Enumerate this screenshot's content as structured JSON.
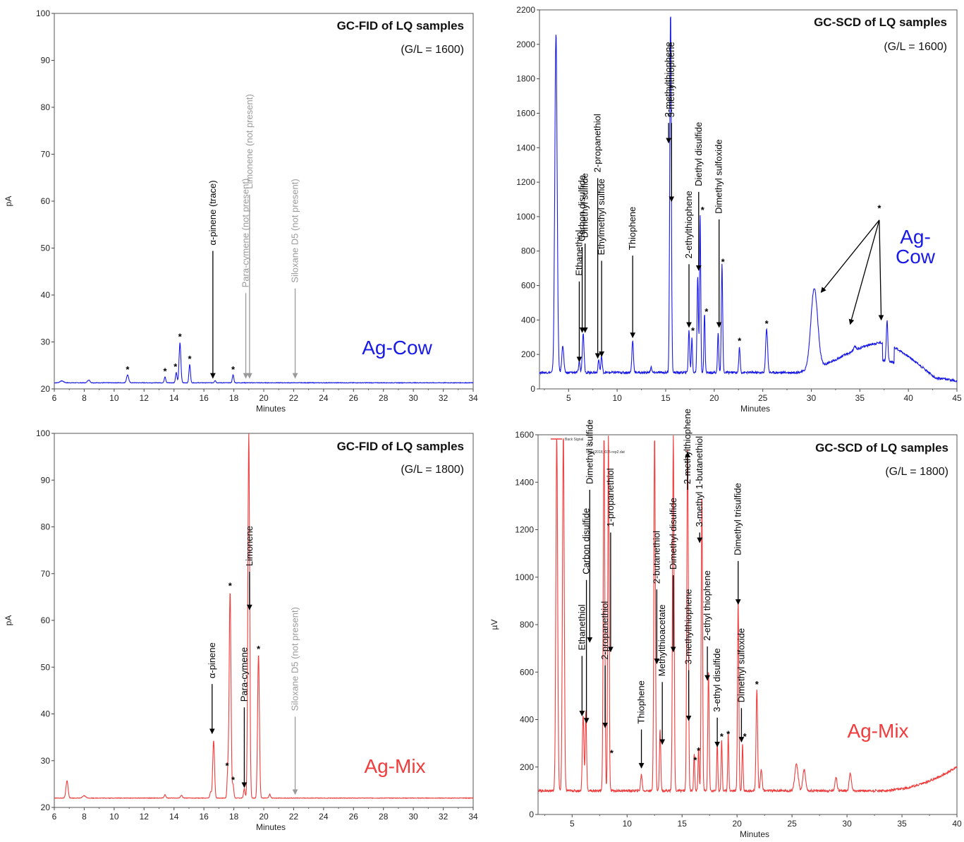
{
  "chart_data": [
    {
      "type": "line",
      "title": "GC-FID of LQ samples",
      "subtitle": "(G/L = 1600)",
      "sample": "Ag-Cow",
      "color": "#1a1ae6",
      "xlabel": "Minutes",
      "ylabel": "pA",
      "xlim": [
        6,
        34
      ],
      "ylim": [
        20,
        100
      ],
      "xticks": [
        6,
        8,
        10,
        12,
        14,
        16,
        18,
        20,
        22,
        24,
        26,
        28,
        30,
        32,
        34
      ],
      "yticks": [
        20,
        30,
        40,
        50,
        60,
        70,
        80,
        90,
        100
      ],
      "baseline": 21.3,
      "peaks": [
        {
          "x": 6.5,
          "y": 21.7,
          "w": 0.12
        },
        {
          "x": 8.3,
          "y": 21.9,
          "w": 0.08
        },
        {
          "x": 10.9,
          "y": 23.0,
          "w": 0.07
        },
        {
          "x": 13.4,
          "y": 22.6,
          "w": 0.05
        },
        {
          "x": 14.15,
          "y": 23.5,
          "w": 0.05
        },
        {
          "x": 14.4,
          "y": 29.8,
          "w": 0.06
        },
        {
          "x": 15.05,
          "y": 25.2,
          "w": 0.05
        },
        {
          "x": 16.75,
          "y": 21.8,
          "w": 0.05
        },
        {
          "x": 17.95,
          "y": 23.0,
          "w": 0.05
        }
      ],
      "annotations": [
        {
          "text": "α-pinene (trace)",
          "x": 16.6,
          "y": 22,
          "top": 50.0,
          "color": "#000000"
        },
        {
          "text": "Para-cymene (not present)",
          "x": 18.8,
          "y": 22,
          "top": 41.0,
          "color": "#9a9a9a"
        },
        {
          "text": "Limonene (not present)",
          "x": 19.05,
          "y": 22,
          "top": 62.0,
          "color": "#9a9a9a"
        },
        {
          "text": "Siloxane D5 (not present)",
          "x": 22.1,
          "y": 22,
          "top": 42.0,
          "color": "#9a9a9a"
        }
      ],
      "stars": [
        [
          10.9,
          24.2
        ],
        [
          13.4,
          23.8
        ],
        [
          14.1,
          24.8
        ],
        [
          14.4,
          31.2
        ],
        [
          15.05,
          26.5
        ],
        [
          17.95,
          24.2
        ]
      ],
      "star": "*"
    },
    {
      "type": "line",
      "title": "GC-SCD of LQ samples",
      "subtitle": "(G/L = 1600)",
      "sample": "Ag-\nCow",
      "color": "#1a1ae6",
      "xlabel": "Minutes",
      "ylabel": "",
      "xlim": [
        2,
        45
      ],
      "ylim": [
        0,
        2200
      ],
      "xticks": [
        5,
        10,
        15,
        20,
        25,
        30,
        35,
        40,
        45
      ],
      "yticks": [
        0,
        200,
        400,
        600,
        800,
        1000,
        1200,
        1400,
        1600,
        1800,
        2000,
        2200
      ],
      "baseline": 95,
      "bump": {
        "from": 28,
        "to": 45
      },
      "peaks": [
        {
          "x": 3.7,
          "y": 2070,
          "w": 0.12
        },
        {
          "x": 4.4,
          "y": 250,
          "w": 0.1
        },
        {
          "x": 6.1,
          "y": 160,
          "w": 0.07
        },
        {
          "x": 6.5,
          "y": 320,
          "w": 0.09
        },
        {
          "x": 8.1,
          "y": 170,
          "w": 0.07
        },
        {
          "x": 8.4,
          "y": 190,
          "w": 0.07
        },
        {
          "x": 11.6,
          "y": 280,
          "w": 0.08
        },
        {
          "x": 13.5,
          "y": 130,
          "w": 0.06
        },
        {
          "x": 15.5,
          "y": 2200,
          "w": 0.08
        },
        {
          "x": 17.4,
          "y": 340,
          "w": 0.07
        },
        {
          "x": 17.7,
          "y": 300,
          "w": 0.06
        },
        {
          "x": 18.3,
          "y": 660,
          "w": 0.07
        },
        {
          "x": 18.55,
          "y": 1010,
          "w": 0.06
        },
        {
          "x": 19.0,
          "y": 440,
          "w": 0.06
        },
        {
          "x": 20.4,
          "y": 330,
          "w": 0.06
        },
        {
          "x": 20.8,
          "y": 720,
          "w": 0.07
        },
        {
          "x": 22.6,
          "y": 240,
          "w": 0.07
        },
        {
          "x": 25.4,
          "y": 350,
          "w": 0.1
        },
        {
          "x": 30.3,
          "y": 560,
          "w": 0.35
        },
        {
          "x": 34.5,
          "y": 115,
          "w": 0.12
        },
        {
          "x": 37.8,
          "y": 330,
          "w": 0.08
        }
      ],
      "annotations": [
        {
          "text": "Ethanethiol",
          "x": 6.1,
          "y": 150,
          "top": 640,
          "color": "#000000"
        },
        {
          "text": "Carbon disulfide",
          "x": 6.4,
          "y": 320,
          "top": 840,
          "color": "#000000"
        },
        {
          "text": "Dimethyl sulfide",
          "x": 6.7,
          "y": 320,
          "top": 860,
          "color": "#000000"
        },
        {
          "text": "2-propanethiol",
          "x": 8.0,
          "y": 170,
          "top": 1240,
          "color": "#000000"
        },
        {
          "text": "Ethylmethyl sulfide",
          "x": 8.4,
          "y": 180,
          "top": 760,
          "color": "#000000"
        },
        {
          "text": "Thiophene",
          "x": 11.6,
          "y": 290,
          "top": 790,
          "color": "#000000"
        },
        {
          "text": "2-methylthiophene",
          "x": 15.3,
          "y": 1420,
          "top": 1560,
          "color": "#000000"
        },
        {
          "text": "3-methylthiophene",
          "x": 15.6,
          "y": 1080,
          "top": 1560,
          "color": "#000000"
        },
        {
          "text": "2-ethylthiophene",
          "x": 17.4,
          "y": 350,
          "top": 740,
          "color": "#000000"
        },
        {
          "text": "Diethyl disulfide",
          "x": 18.4,
          "y": 680,
          "top": 1160,
          "color": "#000000"
        },
        {
          "text": "Dimethyl sulfoxide",
          "x": 20.5,
          "y": 350,
          "top": 1000,
          "color": "#000000"
        }
      ],
      "arrows_from_star": {
        "from": [
          37.0,
          980
        ],
        "to": [
          [
            31.0,
            560
          ],
          [
            34.0,
            375
          ],
          [
            37.2,
            400
          ]
        ]
      },
      "stars": [
        [
          17.8,
          340
        ],
        [
          18.8,
          1040
        ],
        [
          19.2,
          450
        ],
        [
          20.9,
          740
        ],
        [
          22.6,
          280
        ],
        [
          25.4,
          380
        ],
        [
          37.0,
          1050
        ]
      ],
      "star": "*"
    },
    {
      "type": "line",
      "title": "GC-FID of LQ samples",
      "subtitle": "(G/L = 1800)",
      "sample": "Ag-Mix",
      "color": "#f03c3c",
      "xlabel": "Minutes",
      "ylabel": "pA",
      "xlim": [
        6,
        34
      ],
      "ylim": [
        20,
        100
      ],
      "xticks": [
        6,
        8,
        10,
        12,
        14,
        16,
        18,
        20,
        22,
        24,
        26,
        28,
        30,
        32,
        34
      ],
      "yticks": [
        20,
        30,
        40,
        50,
        60,
        70,
        80,
        90,
        100
      ],
      "baseline": 22.0,
      "peaks": [
        {
          "x": 6.85,
          "y": 25.7,
          "w": 0.07
        },
        {
          "x": 8.0,
          "y": 22.5,
          "w": 0.1
        },
        {
          "x": 13.4,
          "y": 22.7,
          "w": 0.06
        },
        {
          "x": 14.5,
          "y": 22.6,
          "w": 0.06
        },
        {
          "x": 16.45,
          "y": 23.3,
          "w": 0.05
        },
        {
          "x": 16.65,
          "y": 34.3,
          "w": 0.06
        },
        {
          "x": 17.6,
          "y": 27.8,
          "w": 0.05
        },
        {
          "x": 17.75,
          "y": 66.2,
          "w": 0.06
        },
        {
          "x": 17.95,
          "y": 24.8,
          "w": 0.05
        },
        {
          "x": 18.7,
          "y": 24.0,
          "w": 0.05
        },
        {
          "x": 19.0,
          "y": 100,
          "w": 0.06
        },
        {
          "x": 19.65,
          "y": 52.8,
          "w": 0.06
        },
        {
          "x": 20.4,
          "y": 22.8,
          "w": 0.05
        }
      ],
      "annotations": [
        {
          "text": "α-pinene",
          "x": 16.55,
          "y": 35.5,
          "top": 47.0,
          "color": "#000000"
        },
        {
          "text": "Para-cymene",
          "x": 18.7,
          "y": 24.0,
          "top": 42.0,
          "color": "#000000"
        },
        {
          "text": "Limonene",
          "x": 19.05,
          "y": 62.0,
          "top": 71.0,
          "color": "#000000"
        },
        {
          "text": "Siloxane D5 (not present)",
          "x": 22.1,
          "y": 22.5,
          "top": 40.0,
          "color": "#9a9a9a"
        }
      ],
      "stars": [
        [
          17.75,
          67.5
        ],
        [
          17.55,
          29.0
        ],
        [
          17.95,
          26.0
        ],
        [
          19.65,
          54.0
        ]
      ],
      "star": "*"
    },
    {
      "type": "line",
      "title": "GC-SCD of LQ samples",
      "subtitle": "(G/L = 1800)",
      "sample": "Ag-Mix",
      "color": "#f03c3c",
      "xlabel": "Minutes",
      "ylabel": "µV",
      "xlim": [
        1.9,
        40
      ],
      "ylim": [
        0,
        1600
      ],
      "xticks": [
        5,
        10,
        15,
        20,
        25,
        30,
        35,
        40
      ],
      "yticks": [
        0,
        200,
        400,
        600,
        800,
        1000,
        1200,
        1400,
        1600
      ],
      "baseline": 100,
      "legend": [
        "Back Signal",
        "SSF",
        "\\data\\2018_035-rep2.dat"
      ],
      "peaks": [
        {
          "x": 3.6,
          "y": 1600,
          "w": 0.08
        },
        {
          "x": 4.2,
          "y": 1600,
          "w": 0.08
        },
        {
          "x": 6.0,
          "y": 420,
          "w": 0.07
        },
        {
          "x": 6.25,
          "y": 440,
          "w": 0.06
        },
        {
          "x": 7.9,
          "y": 1600,
          "w": 0.07
        },
        {
          "x": 8.3,
          "y": 1600,
          "w": 0.06
        },
        {
          "x": 11.3,
          "y": 170,
          "w": 0.07
        },
        {
          "x": 12.5,
          "y": 1600,
          "w": 0.07
        },
        {
          "x": 13.0,
          "y": 360,
          "w": 0.06
        },
        {
          "x": 14.2,
          "y": 1600,
          "w": 0.07
        },
        {
          "x": 15.5,
          "y": 1550,
          "w": 0.07
        },
        {
          "x": 16.1,
          "y": 260,
          "w": 0.05
        },
        {
          "x": 16.5,
          "y": 280,
          "w": 0.05
        },
        {
          "x": 16.8,
          "y": 1360,
          "w": 0.06
        },
        {
          "x": 17.4,
          "y": 610,
          "w": 0.06
        },
        {
          "x": 18.2,
          "y": 300,
          "w": 0.05
        },
        {
          "x": 18.6,
          "y": 320,
          "w": 0.05
        },
        {
          "x": 19.2,
          "y": 340,
          "w": 0.05
        },
        {
          "x": 20.1,
          "y": 900,
          "w": 0.06
        },
        {
          "x": 20.5,
          "y": 300,
          "w": 0.05
        },
        {
          "x": 21.8,
          "y": 530,
          "w": 0.07
        },
        {
          "x": 22.2,
          "y": 190,
          "w": 0.08
        },
        {
          "x": 25.4,
          "y": 210,
          "w": 0.15
        },
        {
          "x": 26.1,
          "y": 190,
          "w": 0.12
        },
        {
          "x": 29.0,
          "y": 155,
          "w": 0.1
        },
        {
          "x": 30.3,
          "y": 175,
          "w": 0.1
        }
      ],
      "rise": {
        "from": 33,
        "to": 40,
        "end": 200
      },
      "annotations": [
        {
          "text": "Ethanethiol",
          "x": 5.9,
          "y": 410,
          "top": 680,
          "color": "#000000"
        },
        {
          "text": "Carbon disulfide",
          "x": 6.3,
          "y": 380,
          "top": 1000,
          "color": "#000000"
        },
        {
          "text": "Dimethyl sulfide",
          "x": 6.6,
          "y": 720,
          "top": 1380,
          "color": "#000000"
        },
        {
          "text": "2-propanethiol",
          "x": 8.0,
          "y": 360,
          "top": 640,
          "color": "#000000"
        },
        {
          "text": "1-propanethiol",
          "x": 8.5,
          "y": 680,
          "top": 1200,
          "color": "#000000"
        },
        {
          "text": "Thiophene",
          "x": 11.3,
          "y": 190,
          "top": 370,
          "color": "#000000"
        },
        {
          "text": "2-butanethiol",
          "x": 12.7,
          "y": 630,
          "top": 960,
          "color": "#000000"
        },
        {
          "text": "Methylthioacetate",
          "x": 13.2,
          "y": 290,
          "top": 570,
          "color": "#000000"
        },
        {
          "text": "Dimethyl disulfide",
          "x": 14.2,
          "y": 680,
          "top": 1020,
          "color": "#000000"
        },
        {
          "text": "2-methylthiophene",
          "x": 15.5,
          "y": 1520,
          "top": 1380,
          "color": "#000000"
        },
        {
          "text": "3-methylthiophene",
          "x": 15.6,
          "y": 390,
          "top": 620,
          "color": "#000000"
        },
        {
          "text": "3-methyl 1-butanethiol",
          "x": 16.6,
          "y": 1140,
          "top": 1200,
          "color": "#000000"
        },
        {
          "text": "2-ethyl thiophene",
          "x": 17.3,
          "y": 560,
          "top": 720,
          "color": "#000000"
        },
        {
          "text": "3-ethyl disulfide",
          "x": 18.2,
          "y": 280,
          "top": 420,
          "color": "#000000"
        },
        {
          "text": "Dimethyl trisulfide",
          "x": 20.1,
          "y": 880,
          "top": 1080,
          "color": "#000000"
        },
        {
          "text": "Dimethyl sulfoxide",
          "x": 20.4,
          "y": 300,
          "top": 460,
          "color": "#000000"
        }
      ],
      "stars": [
        [
          8.6,
          260
        ],
        [
          16.2,
          230
        ],
        [
          16.5,
          270
        ],
        [
          18.6,
          330
        ],
        [
          19.2,
          340
        ],
        [
          20.7,
          330
        ],
        [
          21.8,
          550
        ]
      ],
      "star": "*"
    }
  ]
}
